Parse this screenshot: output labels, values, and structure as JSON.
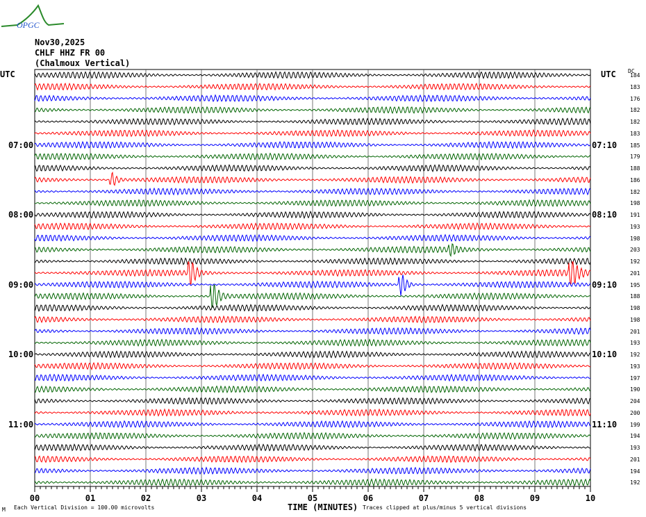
{
  "logo_text": "OPGC",
  "header": {
    "date": "Nov30,2025",
    "station": "CHLF HHZ FR 00",
    "name": "(Chalmoux Vertical)"
  },
  "left_axis_title": "UTC",
  "right_axis_title": "UTC",
  "dc_title": "DC",
  "footer": {
    "scale": "Each Vertical Division =  100.00 microvolts",
    "xlabel": "TIME (MINUTES)",
    "clip_note": "Traces clipped at plus/minus 5 vertical divisions",
    "corner": "M"
  },
  "chart_data": {
    "type": "line",
    "title": "CHLF HHZ FR 00 (Chalmoux Vertical)",
    "xlabel": "TIME (MINUTES)",
    "xlim": [
      0,
      10
    ],
    "x_ticks": [
      "00",
      "01",
      "02",
      "03",
      "04",
      "05",
      "06",
      "07",
      "08",
      "09",
      "10"
    ],
    "left_labels": [
      {
        "row": 6,
        "text": "07:00"
      },
      {
        "row": 12,
        "text": "08:00"
      },
      {
        "row": 18,
        "text": "09:00"
      },
      {
        "row": 24,
        "text": "10:00"
      },
      {
        "row": 30,
        "text": "11:00"
      }
    ],
    "right_labels": [
      {
        "row": 6,
        "text": "07:10"
      },
      {
        "row": 12,
        "text": "08:10"
      },
      {
        "row": 18,
        "text": "09:10"
      },
      {
        "row": 24,
        "text": "10:10"
      },
      {
        "row": 30,
        "text": "11:10"
      }
    ],
    "colors": [
      "#000000",
      "#ff0000",
      "#0000ff",
      "#006400"
    ],
    "dc_values": [
      "184",
      "183",
      "176",
      "182",
      "182",
      "183",
      "185",
      "179",
      "188",
      "186",
      "182",
      "198",
      "191",
      "193",
      "198",
      "203",
      "192",
      "201",
      "195",
      "188",
      "198",
      "198",
      "201",
      "193",
      "192",
      "193",
      "197",
      "190",
      "204",
      "200",
      "199",
      "194",
      "193",
      "201",
      "194",
      "192"
    ],
    "events": [
      {
        "row": 17,
        "minute": 2.8,
        "amp": 1.2
      },
      {
        "row": 17,
        "minute": 9.65,
        "amp": 1.5
      },
      {
        "row": 18,
        "minute": 6.6,
        "amp": 1.0
      },
      {
        "row": 19,
        "minute": 3.2,
        "amp": 1.6
      },
      {
        "row": 9,
        "minute": 1.4,
        "amp": 0.6
      },
      {
        "row": 15,
        "minute": 7.5,
        "amp": 0.4
      }
    ],
    "units": "100.00 microvolts per division"
  }
}
